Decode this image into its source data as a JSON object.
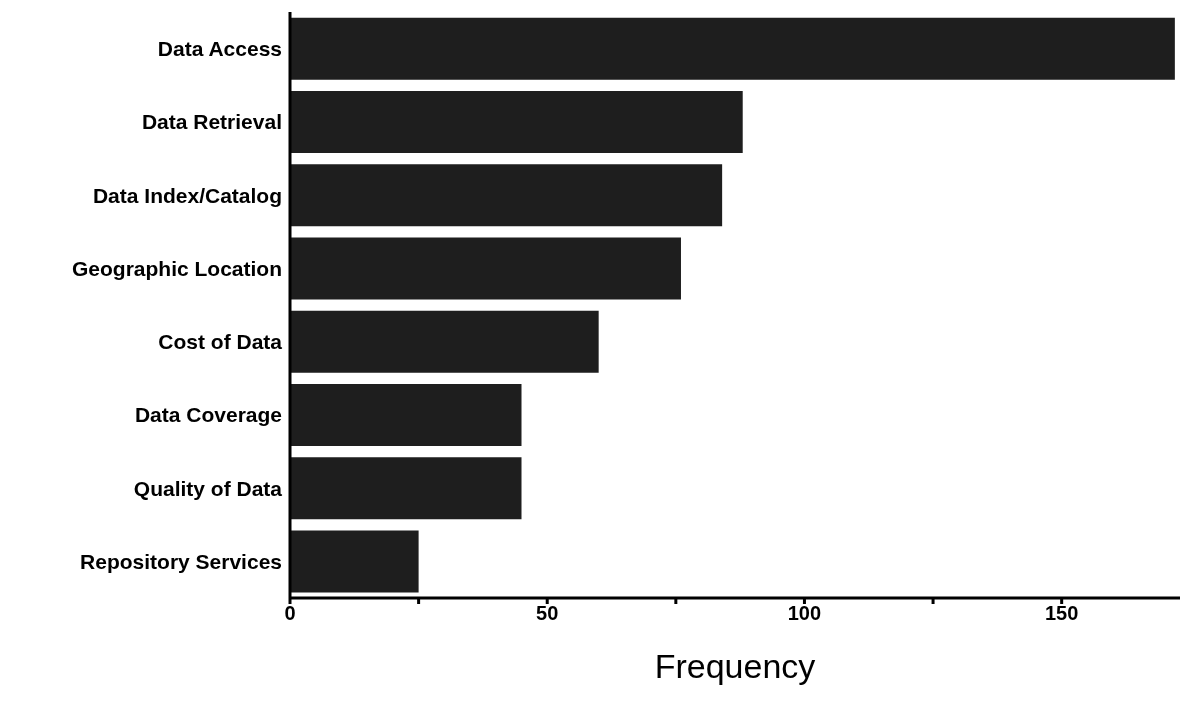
{
  "chart_data": {
    "type": "bar",
    "orientation": "horizontal",
    "xlabel": "Frequency",
    "categories": [
      "Data Access",
      "Data Retrieval",
      "Data Index/Catalog",
      "Geographic Location",
      "Cost of Data",
      "Data Coverage",
      "Quality of Data",
      "Repository Services"
    ],
    "values": [
      172,
      88,
      84,
      76,
      60,
      45,
      45,
      25
    ],
    "color": "#1e1e1e",
    "xlim": [
      0,
      173
    ],
    "xticks": [
      0,
      {
        "value": 25,
        "label": null
      },
      50,
      {
        "value": 75,
        "label": null
      },
      100,
      {
        "value": 125,
        "label": null
      },
      150
    ],
    "grid": false,
    "legend": false
  }
}
